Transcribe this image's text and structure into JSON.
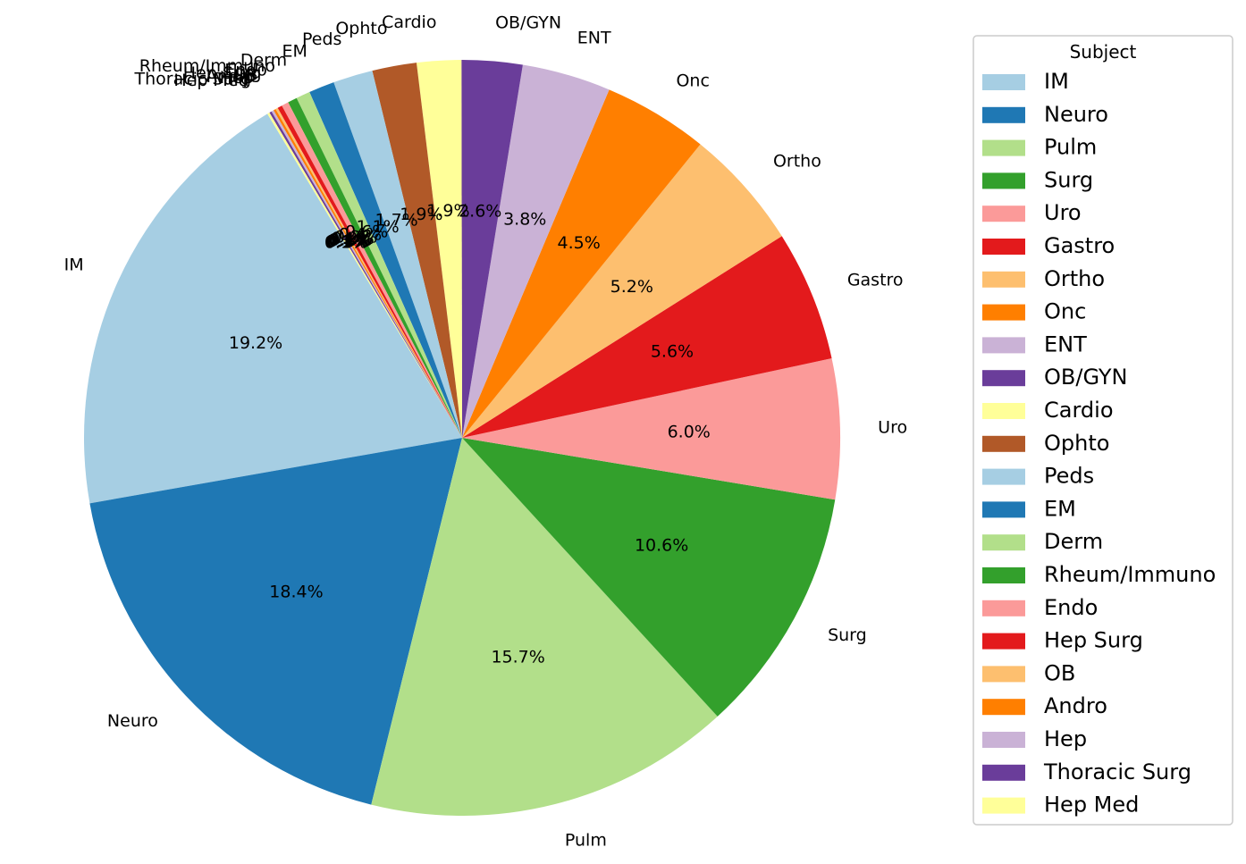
{
  "chart_data": {
    "type": "pie",
    "legend_title": "Subject",
    "legend_position": "right",
    "start_angle_deg": 121,
    "direction": "counterclockwise",
    "slices": [
      {
        "label": "IM",
        "value": 19.2,
        "pct_label": "19.2%",
        "color": "#a6cee3"
      },
      {
        "label": "Neuro",
        "value": 18.4,
        "pct_label": "18.4%",
        "color": "#1f78b4"
      },
      {
        "label": "Pulm",
        "value": 15.7,
        "pct_label": "15.7%",
        "color": "#b2df8a"
      },
      {
        "label": "Surg",
        "value": 10.6,
        "pct_label": "10.6%",
        "color": "#33a02c"
      },
      {
        "label": "Uro",
        "value": 6.0,
        "pct_label": "6.0%",
        "color": "#fb9a99"
      },
      {
        "label": "Gastro",
        "value": 5.6,
        "pct_label": "5.6%",
        "color": "#e31a1c"
      },
      {
        "label": "Ortho",
        "value": 5.2,
        "pct_label": "5.2%",
        "color": "#fdbf6f"
      },
      {
        "label": "Onc",
        "value": 4.5,
        "pct_label": "4.5%",
        "color": "#ff7f00"
      },
      {
        "label": "ENT",
        "value": 3.8,
        "pct_label": "3.8%",
        "color": "#cab2d6"
      },
      {
        "label": "OB/GYN",
        "value": 2.6,
        "pct_label": "2.6%",
        "color": "#6a3d9a"
      },
      {
        "label": "Cardio",
        "value": 1.9,
        "pct_label": "1.9%",
        "color": "#ffff99"
      },
      {
        "label": "Ophto",
        "value": 1.9,
        "pct_label": "1.9%",
        "color": "#b15928"
      },
      {
        "label": "Peds",
        "value": 1.7,
        "pct_label": "1.7%",
        "color": "#a6cee3"
      },
      {
        "label": "EM",
        "value": 1.1,
        "pct_label": "1.1%",
        "color": "#1f78b4"
      },
      {
        "label": "Derm",
        "value": 0.6,
        "pct_label": "0.6%",
        "color": "#b2df8a"
      },
      {
        "label": "Rheum/Immuno",
        "value": 0.4,
        "pct_label": "0.4%",
        "color": "#33a02c"
      },
      {
        "label": "Endo",
        "value": 0.3,
        "pct_label": "0.3%",
        "color": "#fb9a99"
      },
      {
        "label": "Hep Surg",
        "value": 0.2,
        "pct_label": "0.2%",
        "color": "#e31a1c"
      },
      {
        "label": "OB",
        "value": 0.1,
        "pct_label": "0.1%",
        "color": "#fdbf6f"
      },
      {
        "label": "Andro",
        "value": 0.1,
        "pct_label": "0.1%",
        "color": "#ff7f00"
      },
      {
        "label": "Hep",
        "value": 0.1,
        "pct_label": "0.1%",
        "color": "#cab2d6"
      },
      {
        "label": "Thoracic Surg",
        "value": 0.1,
        "pct_label": "0.1%",
        "color": "#6a3d9a"
      },
      {
        "label": "Hep Med",
        "value": 0.1,
        "pct_label": "0.1%",
        "color": "#ffff99"
      }
    ]
  }
}
